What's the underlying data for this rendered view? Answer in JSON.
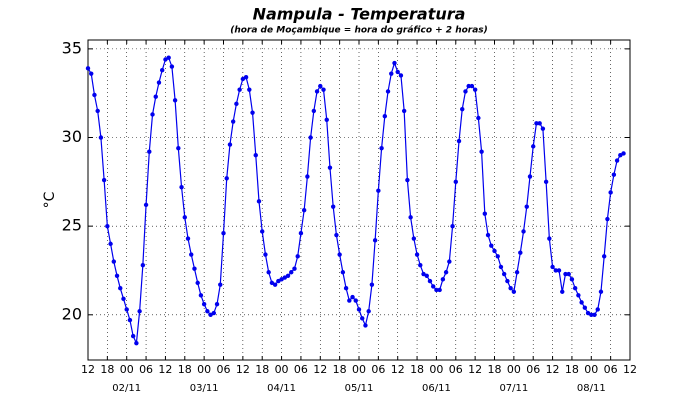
{
  "chart_data": {
    "type": "line",
    "title": "Nampula - Temperatura",
    "subtitle": "(hora de Moçambique = hora do gráfico + 2 horas)",
    "y_label": "°C",
    "color": "#0000ee",
    "grid": true,
    "xlim": [
      0,
      168
    ],
    "ylim": [
      17.45,
      35.5
    ],
    "yticks": [
      20,
      25,
      30,
      35
    ],
    "xticks": [
      {
        "value": 0,
        "label": "12"
      },
      {
        "value": 6,
        "label": "18"
      },
      {
        "value": 12,
        "label": "00"
      },
      {
        "value": 18,
        "label": "06"
      },
      {
        "value": 24,
        "label": "12"
      },
      {
        "value": 30,
        "label": "18"
      },
      {
        "value": 36,
        "label": "00"
      },
      {
        "value": 42,
        "label": "06"
      },
      {
        "value": 48,
        "label": "12"
      },
      {
        "value": 54,
        "label": "18"
      },
      {
        "value": 60,
        "label": "00"
      },
      {
        "value": 66,
        "label": "06"
      },
      {
        "value": 72,
        "label": "12"
      },
      {
        "value": 78,
        "label": "18"
      },
      {
        "value": 84,
        "label": "00"
      },
      {
        "value": 90,
        "label": "06"
      },
      {
        "value": 96,
        "label": "12"
      },
      {
        "value": 102,
        "label": "18"
      },
      {
        "value": 108,
        "label": "00"
      },
      {
        "value": 114,
        "label": "06"
      },
      {
        "value": 120,
        "label": "12"
      },
      {
        "value": 126,
        "label": "18"
      },
      {
        "value": 132,
        "label": "00"
      },
      {
        "value": 138,
        "label": "06"
      },
      {
        "value": 144,
        "label": "12"
      },
      {
        "value": 150,
        "label": "18"
      },
      {
        "value": 156,
        "label": "00"
      },
      {
        "value": 162,
        "label": "06"
      },
      {
        "value": 168,
        "label": "12"
      }
    ],
    "date_labels": [
      {
        "value": 12,
        "label": "02/11"
      },
      {
        "value": 36,
        "label": "03/11"
      },
      {
        "value": 60,
        "label": "04/11"
      },
      {
        "value": 84,
        "label": "05/11"
      },
      {
        "value": 108,
        "label": "06/11"
      },
      {
        "value": 132,
        "label": "07/11"
      },
      {
        "value": 156,
        "label": "08/11"
      }
    ],
    "x": [
      0,
      1,
      2,
      3,
      4,
      5,
      6,
      7,
      8,
      9,
      10,
      11,
      12,
      13,
      14,
      15,
      16,
      17,
      18,
      19,
      20,
      21,
      22,
      23,
      24,
      25,
      26,
      27,
      28,
      29,
      30,
      31,
      32,
      33,
      34,
      35,
      36,
      37,
      38,
      39,
      40,
      41,
      42,
      43,
      44,
      45,
      46,
      47,
      48,
      49,
      50,
      51,
      52,
      53,
      54,
      55,
      56,
      57,
      58,
      59,
      60,
      61,
      62,
      63,
      64,
      65,
      66,
      67,
      68,
      69,
      70,
      71,
      72,
      73,
      74,
      75,
      76,
      77,
      78,
      79,
      80,
      81,
      82,
      83,
      84,
      85,
      86,
      87,
      88,
      89,
      90,
      91,
      92,
      93,
      94,
      95,
      96,
      97,
      98,
      99,
      100,
      101,
      102,
      103,
      104,
      105,
      106,
      107,
      108,
      109,
      110,
      111,
      112,
      113,
      114,
      115,
      116,
      117,
      118,
      119,
      120,
      121,
      122,
      123,
      124,
      125,
      126,
      127,
      128,
      129,
      130,
      131,
      132,
      133,
      134,
      135,
      136,
      137,
      138,
      139,
      140,
      141,
      142,
      143,
      144,
      145,
      146,
      147,
      148,
      149,
      150,
      151,
      152,
      153,
      154,
      155,
      156,
      157,
      158,
      159,
      160,
      161,
      162,
      163,
      164,
      165,
      166
    ],
    "values": [
      33.9,
      33.6,
      32.4,
      31.5,
      30.0,
      27.6,
      25.0,
      24.0,
      23.0,
      22.2,
      21.5,
      20.9,
      20.3,
      19.7,
      18.8,
      18.4,
      20.2,
      22.8,
      26.2,
      29.2,
      31.3,
      32.3,
      33.1,
      33.8,
      34.4,
      34.5,
      34.0,
      32.1,
      29.4,
      27.2,
      25.5,
      24.3,
      23.4,
      22.6,
      21.8,
      21.1,
      20.6,
      20.2,
      20.0,
      20.1,
      20.6,
      21.7,
      24.6,
      27.7,
      29.6,
      30.9,
      31.9,
      32.7,
      33.3,
      33.4,
      32.7,
      31.4,
      29.0,
      26.4,
      24.7,
      23.4,
      22.4,
      21.8,
      21.7,
      21.9,
      22.0,
      22.1,
      22.2,
      22.4,
      22.6,
      23.3,
      24.6,
      25.9,
      27.8,
      30.0,
      31.5,
      32.6,
      32.9,
      32.7,
      31.0,
      28.3,
      26.1,
      24.5,
      23.4,
      22.4,
      21.5,
      20.8,
      21.0,
      20.8,
      20.3,
      19.8,
      19.4,
      20.2,
      21.7,
      24.2,
      27.0,
      29.4,
      31.2,
      32.6,
      33.6,
      34.2,
      33.7,
      33.5,
      31.5,
      27.6,
      25.5,
      24.3,
      23.4,
      22.8,
      22.3,
      22.2,
      21.9,
      21.6,
      21.4,
      21.4,
      22.0,
      22.4,
      23.0,
      25.0,
      27.5,
      29.8,
      31.6,
      32.6,
      32.9,
      32.9,
      32.7,
      31.1,
      29.2,
      25.7,
      24.5,
      23.9,
      23.6,
      23.3,
      22.7,
      22.3,
      21.9,
      21.5,
      21.3,
      22.4,
      23.5,
      24.7,
      26.1,
      27.8,
      29.5,
      30.8,
      30.8,
      30.5,
      27.5,
      24.3,
      22.7,
      22.5,
      22.5,
      21.3,
      22.3,
      22.3,
      22.0,
      21.5,
      21.1,
      20.7,
      20.4,
      20.1,
      20.0,
      20.0,
      20.3,
      21.3,
      23.3,
      25.4,
      26.9,
      27.9,
      28.7,
      29.0,
      29.1
    ]
  }
}
